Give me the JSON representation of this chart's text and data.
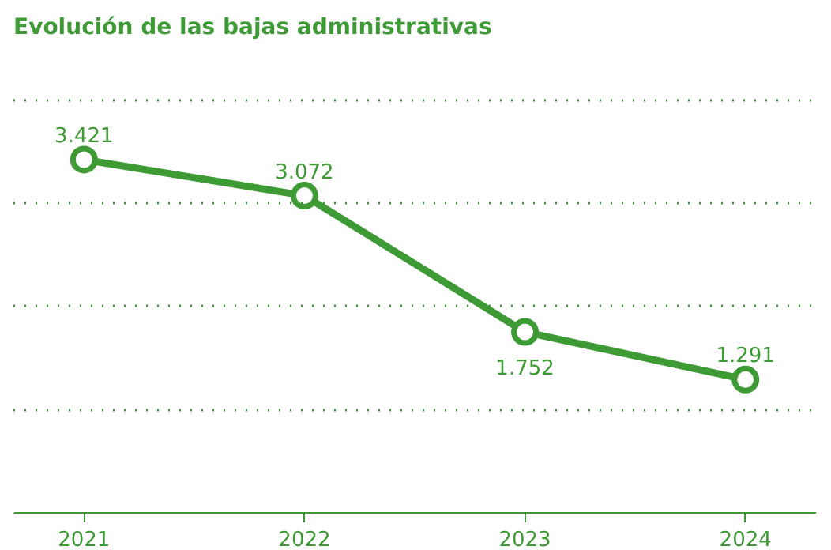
{
  "chart_data": {
    "type": "line",
    "title": "Evolución de las bajas administrativas",
    "categories": [
      "2021",
      "2022",
      "2023",
      "2024"
    ],
    "series": [
      {
        "color": "#3d9a35",
        "values": [
          3421,
          3072,
          1752,
          1291
        ],
        "value_labels": [
          "3.421",
          "3.072",
          "1.752",
          "1.291"
        ]
      }
    ],
    "yticks": [
      {
        "value": 1000,
        "label": null
      },
      {
        "value": 2000,
        "label": null
      },
      {
        "value": 3000,
        "label": null
      },
      {
        "value": 4000,
        "label": null
      }
    ],
    "ylim": [
      0,
      4500
    ],
    "tick_labels": "x",
    "grid": "y",
    "marker": "circle",
    "line_style": "solid"
  }
}
